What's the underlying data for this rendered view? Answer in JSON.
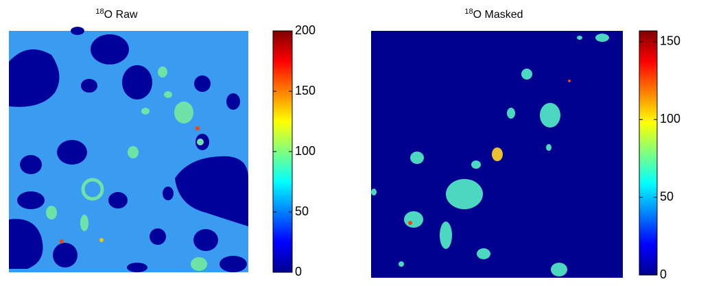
{
  "chart_data": [
    {
      "type": "heatmap",
      "title_superscript": "18",
      "title": "O Raw",
      "colormap": "jet",
      "clim": [
        0,
        200
      ],
      "cticks": [
        0,
        50,
        100,
        150,
        200
      ]
    },
    {
      "type": "heatmap",
      "title_superscript": "18",
      "title": "O Masked",
      "colormap": "jet",
      "clim": [
        0,
        157
      ],
      "cticks": [
        0,
        50,
        100,
        150
      ]
    }
  ]
}
